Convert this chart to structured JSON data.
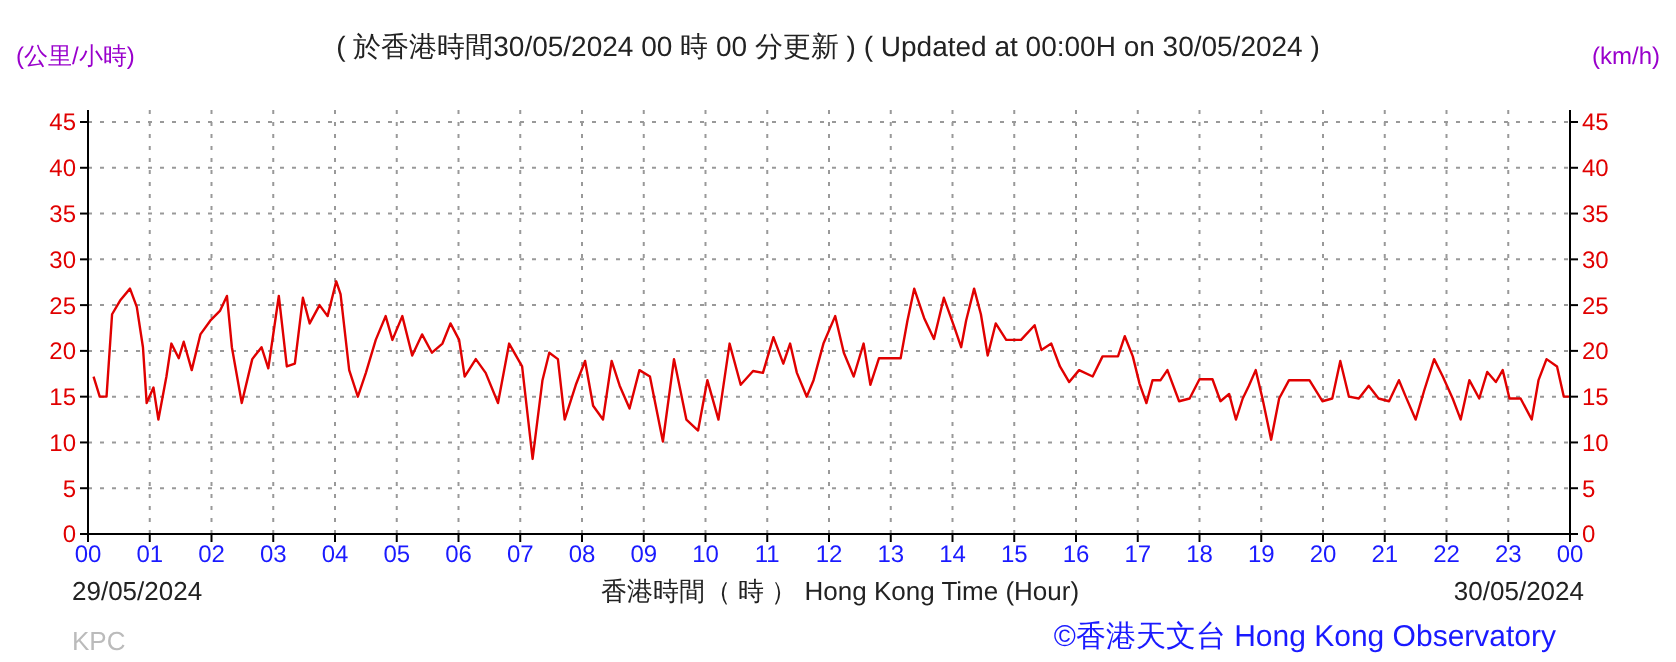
{
  "chart_data": {
    "type": "line",
    "title": "( 於香港時間30/05/2024 00 時 00 分更新 ) ( Updated at 00:00H on 30/05/2024 )",
    "ylabel": "(公里/小時)",
    "y2label": "(km/h)",
    "xlabel": "香港時間（ 時 ） Hong Kong Time (Hour)",
    "annotations": [
      "29/05/2024",
      "30/05/2024",
      "KPC",
      "©香港天文台 Hong Kong Observatory"
    ],
    "xlim": [
      0,
      24
    ],
    "xticks": [
      {
        "value": 0,
        "label": "00"
      },
      {
        "value": 1,
        "label": "01"
      },
      {
        "value": 2,
        "label": "02"
      },
      {
        "value": 3,
        "label": "03"
      },
      {
        "value": 4,
        "label": "04"
      },
      {
        "value": 5,
        "label": "05"
      },
      {
        "value": 6,
        "label": "06"
      },
      {
        "value": 7,
        "label": "07"
      },
      {
        "value": 8,
        "label": "08"
      },
      {
        "value": 9,
        "label": "09"
      },
      {
        "value": 10,
        "label": "10"
      },
      {
        "value": 11,
        "label": "11"
      },
      {
        "value": 12,
        "label": "12"
      },
      {
        "value": 13,
        "label": "13"
      },
      {
        "value": 14,
        "label": "14"
      },
      {
        "value": 15,
        "label": "15"
      },
      {
        "value": 16,
        "label": "16"
      },
      {
        "value": 17,
        "label": "17"
      },
      {
        "value": 18,
        "label": "18"
      },
      {
        "value": 19,
        "label": "19"
      },
      {
        "value": 20,
        "label": "20"
      },
      {
        "value": 21,
        "label": "21"
      },
      {
        "value": 22,
        "label": "22"
      },
      {
        "value": 23,
        "label": "23"
      },
      {
        "value": 24,
        "label": "00"
      }
    ],
    "ylim": [
      0,
      45
    ],
    "yticks": [
      0,
      5,
      10,
      15,
      20,
      25,
      30,
      35,
      40,
      45
    ],
    "y2lim": [
      0,
      45
    ],
    "y2ticks": [
      0,
      5,
      10,
      15,
      20,
      25,
      30,
      35,
      40,
      45
    ],
    "grid": true,
    "marker": "none",
    "line_style": "solid",
    "series": [
      {
        "color": "#e00000",
        "x": [
          0.09,
          0.19,
          0.3,
          0.39,
          0.52,
          0.68,
          0.79,
          0.89,
          0.95,
          1.06,
          1.14,
          1.27,
          1.35,
          1.47,
          1.55,
          1.68,
          1.82,
          1.98,
          2.14,
          2.25,
          2.33,
          2.49,
          2.66,
          2.81,
          2.92,
          3.09,
          3.22,
          3.35,
          3.48,
          3.59,
          3.75,
          3.88,
          4.02,
          4.09,
          4.23,
          4.37,
          4.5,
          4.66,
          4.82,
          4.93,
          5.09,
          5.25,
          5.41,
          5.57,
          5.74,
          5.87,
          6.01,
          6.1,
          6.28,
          6.44,
          6.64,
          6.82,
          7.03,
          7.2,
          7.36,
          7.47,
          7.61,
          7.72,
          7.9,
          8.05,
          8.18,
          8.34,
          8.48,
          8.61,
          8.77,
          8.93,
          9.1,
          9.31,
          9.49,
          9.69,
          9.88,
          10.03,
          10.21,
          10.39,
          10.57,
          10.77,
          10.93,
          11.1,
          11.26,
          11.37,
          11.48,
          11.64,
          11.75,
          11.91,
          12.1,
          12.24,
          12.4,
          12.56,
          12.67,
          12.81,
          13.16,
          13.27,
          13.38,
          13.54,
          13.7,
          13.86,
          14.03,
          14.14,
          14.22,
          14.35,
          14.46,
          14.57,
          14.7,
          14.87,
          15.11,
          15.33,
          15.44,
          15.6,
          15.74,
          15.89,
          16.05,
          16.27,
          16.43,
          16.68,
          16.79,
          16.92,
          17.03,
          17.14,
          17.24,
          17.37,
          17.48,
          17.67,
          17.84,
          18,
          18.21,
          18.34,
          18.48,
          18.59,
          18.7,
          18.8,
          18.91,
          19.02,
          19.16,
          19.29,
          19.45,
          19.78,
          19.99,
          20.15,
          20.28,
          20.42,
          20.58,
          20.74,
          20.9,
          21.07,
          21.23,
          21.34,
          21.5,
          21.64,
          21.8,
          21.94,
          22.1,
          22.23,
          22.37,
          22.53,
          22.66,
          22.8,
          22.91,
          23.02,
          23.2,
          23.38,
          23.49,
          23.62,
          23.79,
          23.9,
          24
        ],
        "values": [
          17.2,
          15,
          15,
          24,
          25.5,
          26.8,
          24.8,
          20.4,
          14.3,
          16,
          12.5,
          17.2,
          20.8,
          19.2,
          21,
          17.9,
          21.8,
          23.3,
          24.4,
          26,
          20.4,
          14.3,
          19.1,
          20.4,
          18.1,
          26,
          18.3,
          18.6,
          25.8,
          23,
          25,
          23.8,
          27.6,
          26.2,
          17.9,
          15,
          17.6,
          21.2,
          23.8,
          21.2,
          23.8,
          19.5,
          21.8,
          19.8,
          20.8,
          23,
          21.2,
          17.2,
          19.1,
          17.6,
          14.3,
          20.8,
          18.3,
          8.2,
          16.8,
          19.8,
          19.1,
          12.5,
          16.3,
          18.9,
          14,
          12.5,
          18.9,
          16.2,
          13.7,
          17.9,
          17.2,
          10.1,
          19.1,
          12.5,
          11.3,
          16.8,
          12.5,
          20.8,
          16.3,
          17.8,
          17.6,
          21.5,
          18.6,
          20.8,
          17.6,
          15,
          16.8,
          20.8,
          23.8,
          19.8,
          17.2,
          20.8,
          16.3,
          19.2,
          19.2,
          23.3,
          26.8,
          23.6,
          21.3,
          25.8,
          22.6,
          20.4,
          23.3,
          26.8,
          24,
          19.5,
          23,
          21.2,
          21.2,
          22.8,
          20.1,
          20.8,
          18.3,
          16.6,
          17.9,
          17.2,
          19.4,
          19.4,
          21.6,
          19.4,
          16.4,
          14.3,
          16.8,
          16.8,
          17.9,
          14.5,
          14.8,
          16.9,
          16.9,
          14.5,
          15.3,
          12.5,
          14.8,
          16.2,
          17.9,
          14.8,
          10.3,
          14.8,
          16.8,
          16.8,
          14.5,
          14.8,
          18.9,
          15,
          14.8,
          16.2,
          14.8,
          14.5,
          16.8,
          15,
          12.5,
          15.7,
          19.1,
          17.2,
          14.8,
          12.5,
          16.8,
          14.8,
          17.7,
          16.6,
          17.9,
          14.8,
          14.8,
          12.5,
          16.8,
          19.1,
          18.3,
          15,
          15
        ]
      }
    ]
  }
}
